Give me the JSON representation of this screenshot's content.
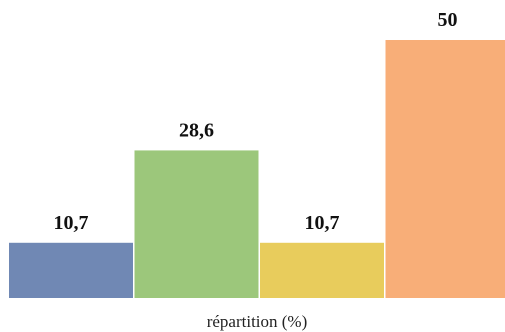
{
  "chart_data": {
    "type": "bar",
    "categories": [
      "",
      "",
      "",
      ""
    ],
    "values": [
      10.7,
      28.6,
      10.7,
      50
    ],
    "value_labels": [
      "10,7",
      "28,6",
      "10,7",
      "50"
    ],
    "colors": [
      "#7088b4",
      "#9cc77b",
      "#e8cc5c",
      "#f8ae78"
    ],
    "xlabel": "répartition (%)",
    "ylim": [
      0,
      50
    ],
    "grid": false,
    "legend": "none"
  }
}
